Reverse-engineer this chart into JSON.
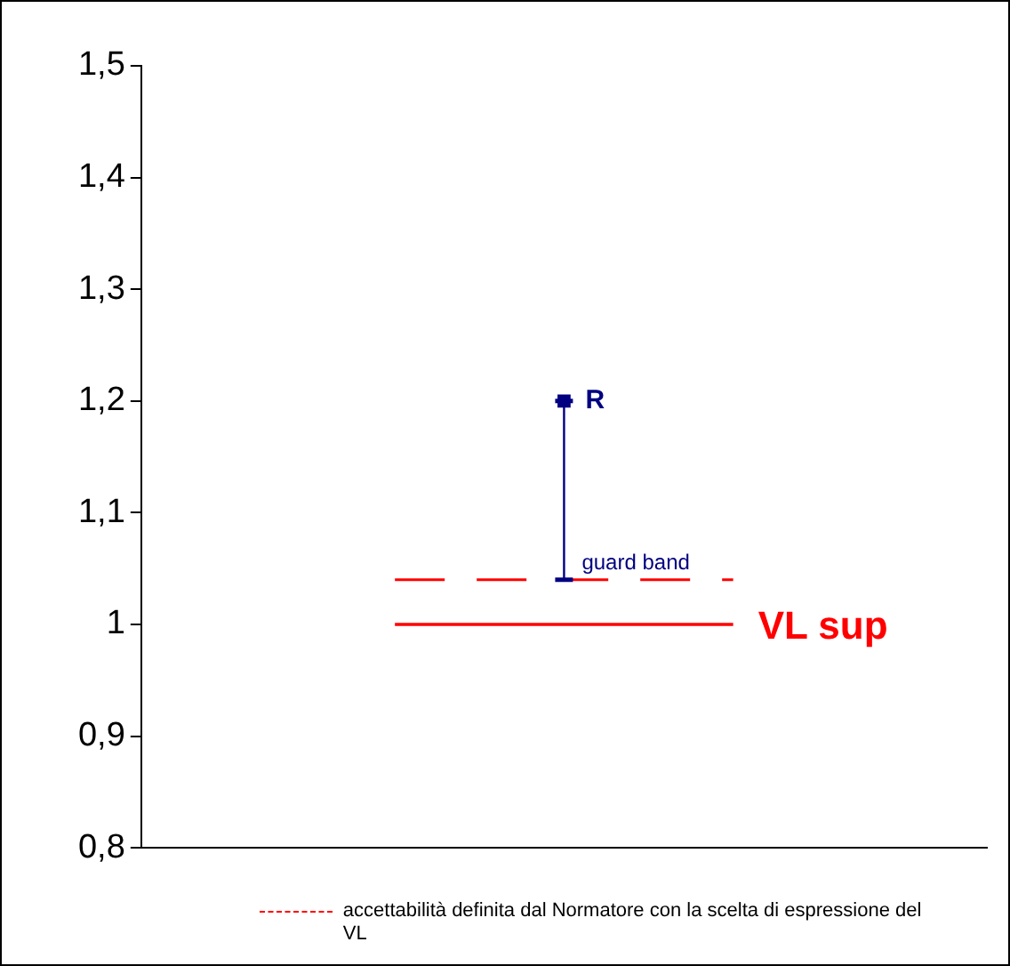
{
  "chart_data": {
    "type": "line",
    "categories": [
      null,
      null,
      null,
      null,
      null
    ],
    "series": [
      {
        "name": "accettabilità definita dal Normatore con la scelta di espressione del VL",
        "color": "#ff0000",
        "line_style": "dashed",
        "marker": "none",
        "values": [
          null,
          1.04,
          1.04,
          1.04,
          null
        ]
      },
      {
        "name": "R",
        "type": "scatter",
        "color": "#000080",
        "marker": "square",
        "values": [
          null,
          null,
          1.2,
          null,
          null
        ],
        "errors": [
          null,
          null,
          [
            1.04,
            1.2
          ],
          null,
          null
        ]
      }
    ],
    "ref_lines": [
      {
        "axis": "y",
        "value": 1,
        "label": "VL sup",
        "color": "#ff0000",
        "line_style": "solid"
      }
    ],
    "annotations": [
      {
        "text": "guard band",
        "y": 1.04
      }
    ],
    "ylim": [
      0.8,
      1.5
    ],
    "yticks": [
      {
        "value": 0.8,
        "label": "0,8"
      },
      {
        "value": 0.9,
        "label": "0,9"
      },
      1,
      {
        "value": 1.1,
        "label": "1,1"
      },
      {
        "value": 1.2,
        "label": "1,2"
      },
      {
        "value": 1.3,
        "label": "1,3"
      },
      {
        "value": 1.4,
        "label": "1,4"
      },
      {
        "value": 1.5,
        "label": "1,5"
      }
    ],
    "tick_labels": "y",
    "grid": false,
    "legend": "bottom"
  }
}
